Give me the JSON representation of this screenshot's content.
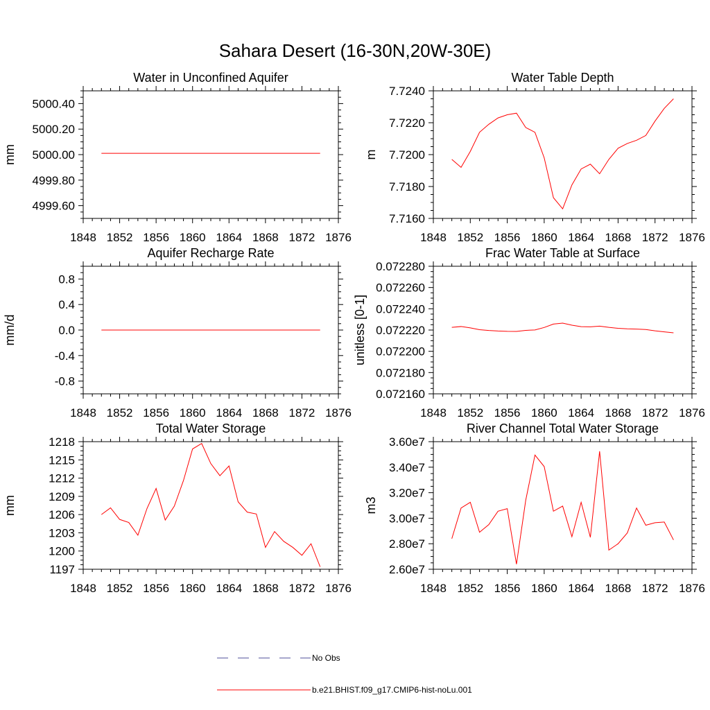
{
  "figure_title": "Sahara Desert (16-30N,20W-30E)",
  "legend": {
    "entries": [
      {
        "label": "No Obs",
        "color": "#4d4d99",
        "dash": true
      },
      {
        "label": "b.e21.BHIST.f09_g17.CMIP6-hist-noLu.001",
        "color": "#ff0000",
        "dash": false
      }
    ]
  },
  "chart_data": [
    {
      "type": "line",
      "title": "Water in Unconfined Aquifer",
      "xlabel": "",
      "ylabel": "mm",
      "xlim": [
        1848,
        1876
      ],
      "xticks": [
        1848,
        1852,
        1856,
        1860,
        1864,
        1868,
        1872,
        1876
      ],
      "ylim": [
        4999.5,
        5000.5
      ],
      "yticks": [
        4999.6,
        4999.8,
        5000.0,
        5000.2,
        5000.4
      ],
      "ytick_labels": [
        "4999.60",
        "4999.80",
        "5000.00",
        "5000.20",
        "5000.40"
      ],
      "x": [
        1850,
        1851,
        1852,
        1853,
        1854,
        1855,
        1856,
        1857,
        1858,
        1859,
        1860,
        1861,
        1862,
        1863,
        1864,
        1865,
        1866,
        1867,
        1868,
        1869,
        1870,
        1871,
        1872,
        1873,
        1874
      ],
      "series": [
        {
          "name": "b.e21.BHIST.f09_g17.CMIP6-hist-noLu.001",
          "color": "#ff0000",
          "values": [
            5000.01,
            5000.01,
            5000.01,
            5000.01,
            5000.01,
            5000.01,
            5000.01,
            5000.01,
            5000.01,
            5000.01,
            5000.01,
            5000.01,
            5000.01,
            5000.01,
            5000.01,
            5000.01,
            5000.01,
            5000.01,
            5000.01,
            5000.01,
            5000.01,
            5000.01,
            5000.01,
            5000.01,
            5000.01
          ]
        }
      ]
    },
    {
      "type": "line",
      "title": "Water Table Depth",
      "xlabel": "",
      "ylabel": "m",
      "xlim": [
        1848,
        1876
      ],
      "xticks": [
        1848,
        1852,
        1856,
        1860,
        1864,
        1868,
        1872,
        1876
      ],
      "ylim": [
        7.716,
        7.724
      ],
      "yticks": [
        7.716,
        7.718,
        7.72,
        7.722,
        7.724
      ],
      "ytick_labels": [
        "7.7160",
        "7.7180",
        "7.7200",
        "7.7220",
        "7.7240"
      ],
      "x": [
        1850,
        1851,
        1852,
        1853,
        1854,
        1855,
        1856,
        1857,
        1858,
        1859,
        1860,
        1861,
        1862,
        1863,
        1864,
        1865,
        1866,
        1867,
        1868,
        1869,
        1870,
        1871,
        1872,
        1873,
        1874
      ],
      "series": [
        {
          "name": "b.e21.BHIST.f09_g17.CMIP6-hist-noLu.001",
          "color": "#ff0000",
          "values": [
            7.7197,
            7.7192,
            7.7202,
            7.7214,
            7.7219,
            7.7223,
            7.7225,
            7.7226,
            7.7217,
            7.7214,
            7.7198,
            7.7173,
            7.7166,
            7.7181,
            7.7191,
            7.7194,
            7.7188,
            7.7197,
            7.7204,
            7.7207,
            7.7209,
            7.7212,
            7.7221,
            7.7229,
            7.7235
          ]
        }
      ]
    },
    {
      "type": "line",
      "title": "Aquifer Recharge Rate",
      "xlabel": "",
      "ylabel": "mm/d",
      "xlim": [
        1848,
        1876
      ],
      "xticks": [
        1848,
        1852,
        1856,
        1860,
        1864,
        1868,
        1872,
        1876
      ],
      "ylim": [
        -1.0,
        1.0
      ],
      "yticks": [
        -0.8,
        -0.4,
        0.0,
        0.4,
        0.8
      ],
      "ytick_labels": [
        "-0.8",
        "-0.4",
        "0.0",
        "0.4",
        "0.8"
      ],
      "x": [
        1850,
        1851,
        1852,
        1853,
        1854,
        1855,
        1856,
        1857,
        1858,
        1859,
        1860,
        1861,
        1862,
        1863,
        1864,
        1865,
        1866,
        1867,
        1868,
        1869,
        1870,
        1871,
        1872,
        1873,
        1874
      ],
      "series": [
        {
          "name": "b.e21.BHIST.f09_g17.CMIP6-hist-noLu.001",
          "color": "#ff0000",
          "values": [
            0,
            0,
            0,
            0,
            0,
            0,
            0,
            0,
            0,
            0,
            0,
            0,
            0,
            0,
            0,
            0,
            0,
            0,
            0,
            0,
            0,
            0,
            0,
            0,
            0
          ]
        }
      ]
    },
    {
      "type": "line",
      "title": "Frac Water Table at Surface",
      "xlabel": "",
      "ylabel": "unitless [0-1]",
      "xlim": [
        1848,
        1876
      ],
      "xticks": [
        1848,
        1852,
        1856,
        1860,
        1864,
        1868,
        1872,
        1876
      ],
      "ylim": [
        0.07216,
        0.07228
      ],
      "yticks": [
        0.07216,
        0.07218,
        0.0722,
        0.07222,
        0.07224,
        0.07226,
        0.07228
      ],
      "ytick_labels": [
        "0.072160",
        "0.072180",
        "0.072200",
        "0.072220",
        "0.072240",
        "0.072260",
        "0.072280"
      ],
      "x": [
        1850,
        1851,
        1852,
        1853,
        1854,
        1855,
        1856,
        1857,
        1858,
        1859,
        1860,
        1861,
        1862,
        1863,
        1864,
        1865,
        1866,
        1867,
        1868,
        1869,
        1870,
        1871,
        1872,
        1873,
        1874
      ],
      "series": [
        {
          "name": "b.e21.BHIST.f09_g17.CMIP6-hist-noLu.001",
          "color": "#ff0000",
          "values": [
            0.0722225,
            0.0722233,
            0.072222,
            0.0722203,
            0.0722196,
            0.0722191,
            0.0722188,
            0.0722187,
            0.0722197,
            0.0722201,
            0.0722224,
            0.0722256,
            0.0722265,
            0.0722246,
            0.0722232,
            0.072223,
            0.0722237,
            0.0722225,
            0.0722216,
            0.0722211,
            0.0722209,
            0.0722205,
            0.0722193,
            0.0722183,
            0.0722174
          ]
        }
      ]
    },
    {
      "type": "line",
      "title": "Total Water Storage",
      "xlabel": "",
      "ylabel": "mm",
      "xlim": [
        1848,
        1876
      ],
      "xticks": [
        1848,
        1852,
        1856,
        1860,
        1864,
        1868,
        1872,
        1876
      ],
      "ylim": [
        1197,
        1218
      ],
      "yticks": [
        1197,
        1200,
        1203,
        1206,
        1209,
        1212,
        1215,
        1218
      ],
      "ytick_labels": [
        "1197",
        "1200",
        "1203",
        "1206",
        "1209",
        "1212",
        "1215",
        "1218"
      ],
      "x": [
        1850,
        1851,
        1852,
        1853,
        1854,
        1855,
        1856,
        1857,
        1858,
        1859,
        1860,
        1861,
        1862,
        1863,
        1864,
        1865,
        1866,
        1867,
        1868,
        1869,
        1870,
        1871,
        1872,
        1873,
        1874
      ],
      "series": [
        {
          "name": "b.e21.BHIST.f09_g17.CMIP6-hist-noLu.001",
          "color": "#ff0000",
          "values": [
            1206.0,
            1207.1,
            1205.2,
            1204.7,
            1202.6,
            1207.0,
            1210.3,
            1205.1,
            1207.4,
            1211.6,
            1216.8,
            1217.7,
            1214.4,
            1212.4,
            1214.0,
            1208.1,
            1206.4,
            1206.1,
            1200.6,
            1203.2,
            1201.6,
            1200.6,
            1199.3,
            1201.2,
            1197.4
          ]
        }
      ]
    },
    {
      "type": "line",
      "title": "River Channel Total Water Storage",
      "xlabel": "",
      "ylabel": "m3",
      "xlim": [
        1848,
        1876
      ],
      "xticks": [
        1848,
        1852,
        1856,
        1860,
        1864,
        1868,
        1872,
        1876
      ],
      "ylim": [
        26000000,
        36000000
      ],
      "yticks": [
        26000000,
        28000000,
        30000000,
        32000000,
        34000000,
        36000000
      ],
      "ytick_labels": [
        "2.60e7",
        "2.80e7",
        "3.00e7",
        "3.20e7",
        "3.40e7",
        "3.60e7"
      ],
      "x": [
        1850,
        1851,
        1852,
        1853,
        1854,
        1855,
        1856,
        1857,
        1858,
        1859,
        1860,
        1861,
        1862,
        1863,
        1864,
        1865,
        1866,
        1867,
        1868,
        1869,
        1870,
        1871,
        1872,
        1873,
        1874
      ],
      "series": [
        {
          "name": "b.e21.BHIST.f09_g17.CMIP6-hist-noLu.001",
          "color": "#ff0000",
          "values": [
            28400000,
            30800000,
            31250000,
            28900000,
            29500000,
            30550000,
            30750000,
            26400000,
            31400000,
            34950000,
            34050000,
            30550000,
            30950000,
            28550000,
            31250000,
            28500000,
            35250000,
            27500000,
            28000000,
            28850000,
            30800000,
            29450000,
            29650000,
            29700000,
            28300000
          ]
        }
      ]
    }
  ]
}
